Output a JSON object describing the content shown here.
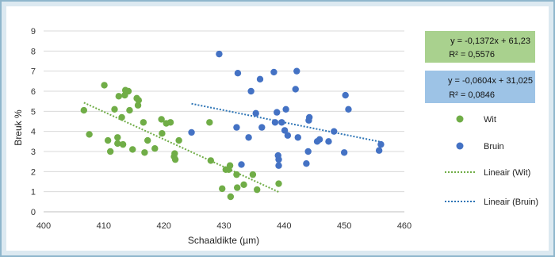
{
  "chart_data": {
    "type": "scatter",
    "xlabel": "Schaaldikte (µm)",
    "ylabel": "Breuk %",
    "xlim": [
      400,
      460
    ],
    "ylim": [
      0,
      9
    ],
    "x_ticks": [
      "400",
      "410",
      "420",
      "430",
      "440",
      "450",
      "460"
    ],
    "y_ticks": [
      "0",
      "1",
      "2",
      "3",
      "4",
      "5",
      "6",
      "7",
      "8",
      "9"
    ],
    "grid": "horizontal",
    "legend_position": "right",
    "series": [
      {
        "name": "Wit",
        "color": "#70ad47",
        "points": [
          [
            406.7,
            5.05
          ],
          [
            407.6,
            3.85
          ],
          [
            410.1,
            6.3
          ],
          [
            410.7,
            3.55
          ],
          [
            411.1,
            3.0
          ],
          [
            411.8,
            5.1
          ],
          [
            412.3,
            3.4
          ],
          [
            412.3,
            3.7
          ],
          [
            412.5,
            5.75
          ],
          [
            413.0,
            4.7
          ],
          [
            413.2,
            3.35
          ],
          [
            413.5,
            5.8
          ],
          [
            413.6,
            6.05
          ],
          [
            414.1,
            6.0
          ],
          [
            414.3,
            5.05
          ],
          [
            414.8,
            3.1
          ],
          [
            415.5,
            5.65
          ],
          [
            415.7,
            5.3
          ],
          [
            415.8,
            5.55
          ],
          [
            416.6,
            4.45
          ],
          [
            416.8,
            2.95
          ],
          [
            417.3,
            3.55
          ],
          [
            418.5,
            3.15
          ],
          [
            419.6,
            4.6
          ],
          [
            419.7,
            3.9
          ],
          [
            420.4,
            4.4
          ],
          [
            421.1,
            4.45
          ],
          [
            421.7,
            2.75
          ],
          [
            421.8,
            2.9
          ],
          [
            421.9,
            2.6
          ],
          [
            422.5,
            3.55
          ],
          [
            427.6,
            4.45
          ],
          [
            427.8,
            2.55
          ],
          [
            429.7,
            1.15
          ],
          [
            430.3,
            2.1
          ],
          [
            430.8,
            2.1
          ],
          [
            431.0,
            2.3
          ],
          [
            431.1,
            0.75
          ],
          [
            432.1,
            1.85
          ],
          [
            432.2,
            1.2
          ],
          [
            433.3,
            1.35
          ],
          [
            434.8,
            1.85
          ],
          [
            435.5,
            1.1
          ],
          [
            439.1,
            1.4
          ]
        ]
      },
      {
        "name": "Bruin",
        "color": "#4472c4",
        "points": [
          [
            424.6,
            3.95
          ],
          [
            429.2,
            7.85
          ],
          [
            432.1,
            4.2
          ],
          [
            432.3,
            6.9
          ],
          [
            432.9,
            2.35
          ],
          [
            434.1,
            3.7
          ],
          [
            434.5,
            6.0
          ],
          [
            435.3,
            4.9
          ],
          [
            436.0,
            6.6
          ],
          [
            436.3,
            4.2
          ],
          [
            438.3,
            6.95
          ],
          [
            438.5,
            4.45
          ],
          [
            438.8,
            4.95
          ],
          [
            439.0,
            2.8
          ],
          [
            439.1,
            2.6
          ],
          [
            439.1,
            2.3
          ],
          [
            439.6,
            4.45
          ],
          [
            440.1,
            4.05
          ],
          [
            440.3,
            5.1
          ],
          [
            440.6,
            3.8
          ],
          [
            441.9,
            6.1
          ],
          [
            442.1,
            7.0
          ],
          [
            442.3,
            3.7
          ],
          [
            443.7,
            2.4
          ],
          [
            444.0,
            3.0
          ],
          [
            444.1,
            4.55
          ],
          [
            444.2,
            4.7
          ],
          [
            445.5,
            3.5
          ],
          [
            445.9,
            3.6
          ],
          [
            447.4,
            3.5
          ],
          [
            448.3,
            4.0
          ],
          [
            450.0,
            2.95
          ],
          [
            450.2,
            5.8
          ],
          [
            450.7,
            5.1
          ],
          [
            455.8,
            3.05
          ],
          [
            456.1,
            3.35
          ]
        ]
      }
    ],
    "trendlines": [
      {
        "name": "Lineair (Wit)",
        "color": "#70ad47",
        "slope": -0.1372,
        "intercept": 61.23,
        "x_range": [
          406.7,
          439.1
        ],
        "equation": "y = -0,1372x + 61,23",
        "r_squared": "R² = 0,5576",
        "label_bg": "#a9d18e"
      },
      {
        "name": "Lineair (Bruin)",
        "color": "#2e75b6",
        "slope": -0.0604,
        "intercept": 31.025,
        "x_range": [
          424.6,
          456.1
        ],
        "equation": "y = -0,0604x + 31,025",
        "r_squared": "R² = 0,0846",
        "label_bg": "#9dc3e6"
      }
    ]
  }
}
